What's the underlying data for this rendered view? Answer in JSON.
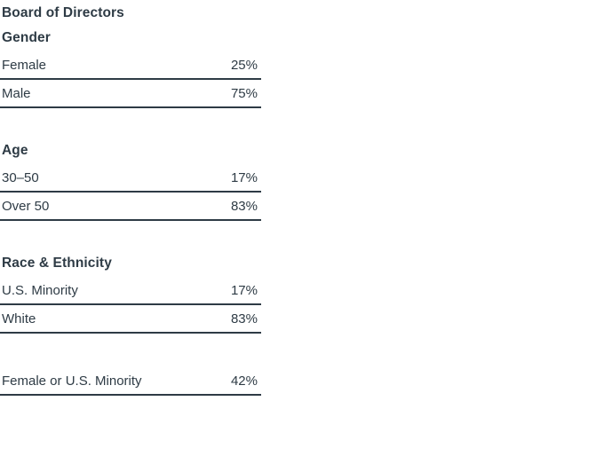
{
  "title": "Board of Directors",
  "colors": {
    "text": "#2e3b45",
    "rule": "#2e3b45",
    "background": "#ffffff"
  },
  "chart_data": {
    "type": "table",
    "title": "Board of Directors",
    "sections": [
      {
        "heading": "Gender",
        "rows": [
          {
            "label": "Female",
            "value": "25%"
          },
          {
            "label": "Male",
            "value": "75%"
          }
        ]
      },
      {
        "heading": "Age",
        "rows": [
          {
            "label": "30–50",
            "value": "17%"
          },
          {
            "label": "Over 50",
            "value": "83%"
          }
        ]
      },
      {
        "heading": "Race & Ethnicity",
        "rows": [
          {
            "label": "U.S. Minority",
            "value": "17%"
          },
          {
            "label": "White",
            "value": "83%"
          }
        ]
      }
    ],
    "summary_row": {
      "label": "Female or U.S. Minority",
      "value": "42%"
    }
  }
}
